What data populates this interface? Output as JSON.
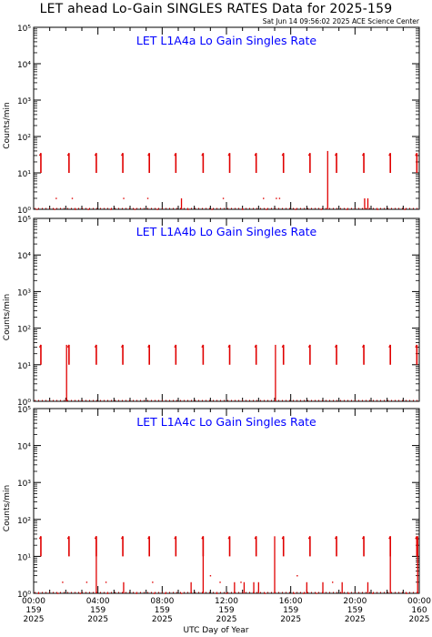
{
  "header": {
    "title": "LET ahead Lo-Gain SINGLES RATES Data for 2025-159",
    "timestamp": "Sat Jun 14 09:56:02 2025 ACE Science Center",
    "xlabel": "UTC Day of Year"
  },
  "colors": {
    "data": "#e00000",
    "panel_title": "#0000ff",
    "axis": "#000000"
  },
  "chart_data": [
    {
      "type": "line",
      "title": "LET L1A4a Lo Gain Singles Rate",
      "ylabel": "Counts/min",
      "yscale": "log",
      "ylim": [
        1,
        100000
      ],
      "xlim": [
        0,
        24
      ],
      "y_tick_labels": [
        "10⁰",
        "10¹",
        "10²",
        "10³",
        "10⁴",
        "10⁵"
      ],
      "burst_peak": 35,
      "burst_low": 10,
      "bursts_hours": [
        0.45,
        2.2,
        3.9,
        5.55,
        7.2,
        8.85,
        10.55,
        12.2,
        13.85,
        15.55,
        17.2,
        18.85,
        20.55,
        22.2,
        23.85
      ],
      "spikes": [
        {
          "x": 9.2,
          "y": 2
        },
        {
          "x": 18.3,
          "y": 40
        },
        {
          "x": 20.6,
          "y": 2
        },
        {
          "x": 20.8,
          "y": 2
        }
      ],
      "baseline_points": [
        {
          "x": 0.2,
          "y": 1
        },
        {
          "x": 1.3,
          "y": 1
        },
        {
          "x": 2.6,
          "y": 1
        },
        {
          "x": 3.4,
          "y": 1
        },
        {
          "x": 4.8,
          "y": 1
        },
        {
          "x": 6.3,
          "y": 1
        },
        {
          "x": 7.7,
          "y": 1
        },
        {
          "x": 9.6,
          "y": 1
        },
        {
          "x": 11.1,
          "y": 1
        },
        {
          "x": 13.0,
          "y": 1
        },
        {
          "x": 14.5,
          "y": 1
        },
        {
          "x": 16.3,
          "y": 1
        },
        {
          "x": 17.9,
          "y": 1
        },
        {
          "x": 19.5,
          "y": 1
        },
        {
          "x": 21.4,
          "y": 1
        },
        {
          "x": 23.1,
          "y": 1
        },
        {
          "x": 1.4,
          "y": 2
        },
        {
          "x": 2.4,
          "y": 2
        },
        {
          "x": 5.6,
          "y": 2
        },
        {
          "x": 7.1,
          "y": 2
        },
        {
          "x": 11.8,
          "y": 2
        },
        {
          "x": 14.3,
          "y": 2
        },
        {
          "x": 15.1,
          "y": 2
        },
        {
          "x": 15.3,
          "y": 2
        }
      ]
    },
    {
      "type": "line",
      "title": "LET L1A4b Lo Gain Singles Rate",
      "ylabel": "Counts/min",
      "yscale": "log",
      "ylim": [
        1,
        100000
      ],
      "xlim": [
        0,
        24
      ],
      "y_tick_labels": [
        "10⁰",
        "10¹",
        "10²",
        "10³",
        "10⁴",
        "10⁵"
      ],
      "burst_peak": 35,
      "burst_low": 10,
      "bursts_hours": [
        0.45,
        2.2,
        3.9,
        5.55,
        7.2,
        8.85,
        10.55,
        12.2,
        13.85,
        15.55,
        17.2,
        18.85,
        20.55,
        22.2,
        23.85
      ],
      "spikes": [
        {
          "x": 2.05,
          "y": 35
        },
        {
          "x": 15.05,
          "y": 35
        }
      ],
      "baseline_points": []
    },
    {
      "type": "line",
      "title": "LET L1A4c Lo Gain Singles Rate",
      "ylabel": "Counts/min",
      "yscale": "log",
      "ylim": [
        1,
        100000
      ],
      "xlim": [
        0,
        24
      ],
      "y_tick_labels": [
        "10⁰",
        "10¹",
        "10²",
        "10³",
        "10⁴",
        "10⁵"
      ],
      "burst_peak": 35,
      "burst_low": 10,
      "bursts_hours": [
        0.45,
        2.2,
        3.9,
        5.55,
        7.2,
        8.85,
        10.55,
        12.2,
        13.85,
        15.55,
        17.2,
        18.85,
        20.55,
        22.2,
        23.85
      ],
      "spikes": [
        {
          "x": 3.9,
          "y": 35
        },
        {
          "x": 5.6,
          "y": 2
        },
        {
          "x": 9.8,
          "y": 2
        },
        {
          "x": 10.55,
          "y": 35
        },
        {
          "x": 12.5,
          "y": 2
        },
        {
          "x": 13.1,
          "y": 2
        },
        {
          "x": 13.7,
          "y": 2
        },
        {
          "x": 14.0,
          "y": 2
        },
        {
          "x": 15.0,
          "y": 35
        },
        {
          "x": 17.0,
          "y": 2
        },
        {
          "x": 18.0,
          "y": 2
        },
        {
          "x": 19.2,
          "y": 2
        },
        {
          "x": 20.8,
          "y": 2
        },
        {
          "x": 22.2,
          "y": 35
        },
        {
          "x": 23.9,
          "y": 35
        }
      ],
      "baseline_points": [
        {
          "x": 0.3,
          "y": 1
        },
        {
          "x": 1.5,
          "y": 1
        },
        {
          "x": 2.9,
          "y": 1
        },
        {
          "x": 4.6,
          "y": 1
        },
        {
          "x": 6.4,
          "y": 1
        },
        {
          "x": 7.5,
          "y": 1
        },
        {
          "x": 8.2,
          "y": 1
        },
        {
          "x": 9.2,
          "y": 1
        },
        {
          "x": 11.4,
          "y": 1
        },
        {
          "x": 12.0,
          "y": 1
        },
        {
          "x": 14.4,
          "y": 1
        },
        {
          "x": 16.2,
          "y": 1
        },
        {
          "x": 16.8,
          "y": 1
        },
        {
          "x": 17.6,
          "y": 1
        },
        {
          "x": 19.6,
          "y": 1
        },
        {
          "x": 21.1,
          "y": 1
        },
        {
          "x": 23.2,
          "y": 1
        },
        {
          "x": 1.8,
          "y": 2
        },
        {
          "x": 3.3,
          "y": 2
        },
        {
          "x": 4.5,
          "y": 2
        },
        {
          "x": 7.4,
          "y": 2
        },
        {
          "x": 11.0,
          "y": 3
        },
        {
          "x": 11.6,
          "y": 2
        },
        {
          "x": 12.9,
          "y": 2
        },
        {
          "x": 16.4,
          "y": 3
        },
        {
          "x": 18.6,
          "y": 2
        }
      ]
    }
  ],
  "x_axis": {
    "ticks": [
      {
        "hour": 0,
        "time": "00:00",
        "day": "159",
        "year": "2025"
      },
      {
        "hour": 4,
        "time": "04:00",
        "day": "159",
        "year": "2025"
      },
      {
        "hour": 8,
        "time": "08:00",
        "day": "159",
        "year": "2025"
      },
      {
        "hour": 12,
        "time": "12:00",
        "day": "159",
        "year": "2025"
      },
      {
        "hour": 16,
        "time": "16:00",
        "day": "159",
        "year": "2025"
      },
      {
        "hour": 20,
        "time": "20:00",
        "day": "159",
        "year": "2025"
      },
      {
        "hour": 24,
        "time": "00:00",
        "day": "160",
        "year": "2025"
      }
    ]
  }
}
